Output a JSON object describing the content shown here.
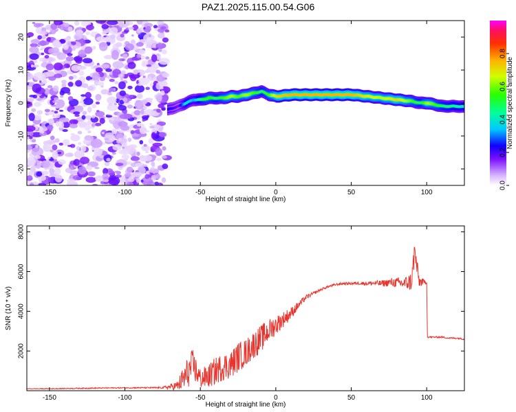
{
  "title": "PAZ1.2025.115.00.54.G06",
  "chart_data": [
    {
      "type": "heatmap",
      "xlabel": "Height of straight line (km)",
      "ylabel": "Frequency (Hz)",
      "xlim": [
        -165,
        125
      ],
      "ylim": [
        -25,
        25
      ],
      "xticks": [
        -150,
        -100,
        -50,
        0,
        50,
        100
      ],
      "yticks": [
        -20,
        -10,
        0,
        10,
        20
      ],
      "colorbar": {
        "label": "Normalized spectral amplitude",
        "range": [
          0,
          1
        ],
        "ticks": [
          0.0,
          0.2,
          0.4,
          0.6,
          0.8
        ]
      },
      "ridge": {
        "x": [
          -72,
          -65,
          -60,
          -55,
          -50,
          -45,
          -40,
          -35,
          -30,
          -25,
          -20,
          -15,
          -10,
          -5,
          0,
          10,
          20,
          30,
          40,
          50,
          60,
          70,
          80,
          90,
          95,
          100,
          110,
          120,
          125
        ],
        "frequency": [
          -2,
          -1,
          0,
          1,
          1,
          1.5,
          1.5,
          1.5,
          2,
          2,
          2.5,
          3,
          3.5,
          2.5,
          2,
          2.5,
          2.5,
          2.5,
          2.5,
          2.5,
          2,
          1.5,
          1,
          0.5,
          0,
          0,
          -1,
          -1,
          -1.2
        ],
        "amplitude": [
          0.3,
          0.2,
          0.5,
          0.4,
          0.6,
          0.7,
          0.6,
          0.7,
          0.8,
          0.7,
          0.8,
          0.7,
          0.6,
          0.7,
          0.9,
          0.95,
          0.95,
          0.95,
          0.95,
          0.95,
          0.85,
          0.8,
          0.9,
          0.7,
          0.6,
          0.8,
          0.6,
          0.55,
          0.5
        ]
      },
      "noise_region_x": [
        -165,
        -72
      ]
    },
    {
      "type": "line",
      "xlabel": "Height of straight line (km)",
      "ylabel": "SNR (10 * v/v)",
      "xlim": [
        -165,
        125
      ],
      "ylim": [
        0,
        8300
      ],
      "xticks": [
        -150,
        -100,
        -50,
        0,
        50,
        100
      ],
      "yticks": [
        2000,
        4000,
        6000,
        8000
      ],
      "color": "#e8342c",
      "series": [
        {
          "x": [
            -165,
            -150,
            -130,
            -110,
            -90,
            -75,
            -65,
            -60,
            -55,
            -50,
            -45,
            -40,
            -35,
            -30,
            -25,
            -20,
            -15,
            -10,
            -5,
            0,
            5,
            10,
            15,
            20,
            25,
            30,
            35,
            40,
            45,
            50,
            55,
            60,
            65,
            70,
            75,
            80,
            85,
            90,
            92,
            95,
            100,
            100.5,
            105,
            110,
            115,
            120,
            125
          ],
          "y": [
            100,
            100,
            120,
            140,
            150,
            150,
            250,
            700,
            1300,
            600,
            700,
            1000,
            1200,
            1300,
            1700,
            1900,
            2300,
            2600,
            3000,
            3300,
            3600,
            3900,
            4300,
            4700,
            4900,
            5100,
            5250,
            5350,
            5400,
            5400,
            5420,
            5400,
            5420,
            5400,
            5450,
            5450,
            5400,
            5500,
            7000,
            5500,
            5450,
            2700,
            2700,
            2700,
            2650,
            2650,
            2600
          ],
          "noise": [
            10,
            20,
            25,
            25,
            30,
            40,
            250,
            800,
            800,
            500,
            600,
            700,
            700,
            700,
            750,
            700,
            700,
            700,
            600,
            500,
            400,
            300,
            200,
            120,
            80,
            60,
            60,
            60,
            60,
            70,
            80,
            100,
            120,
            160,
            200,
            250,
            300,
            500,
            700,
            300,
            60,
            40,
            40,
            40,
            40,
            40,
            40
          ]
        }
      ]
    }
  ]
}
